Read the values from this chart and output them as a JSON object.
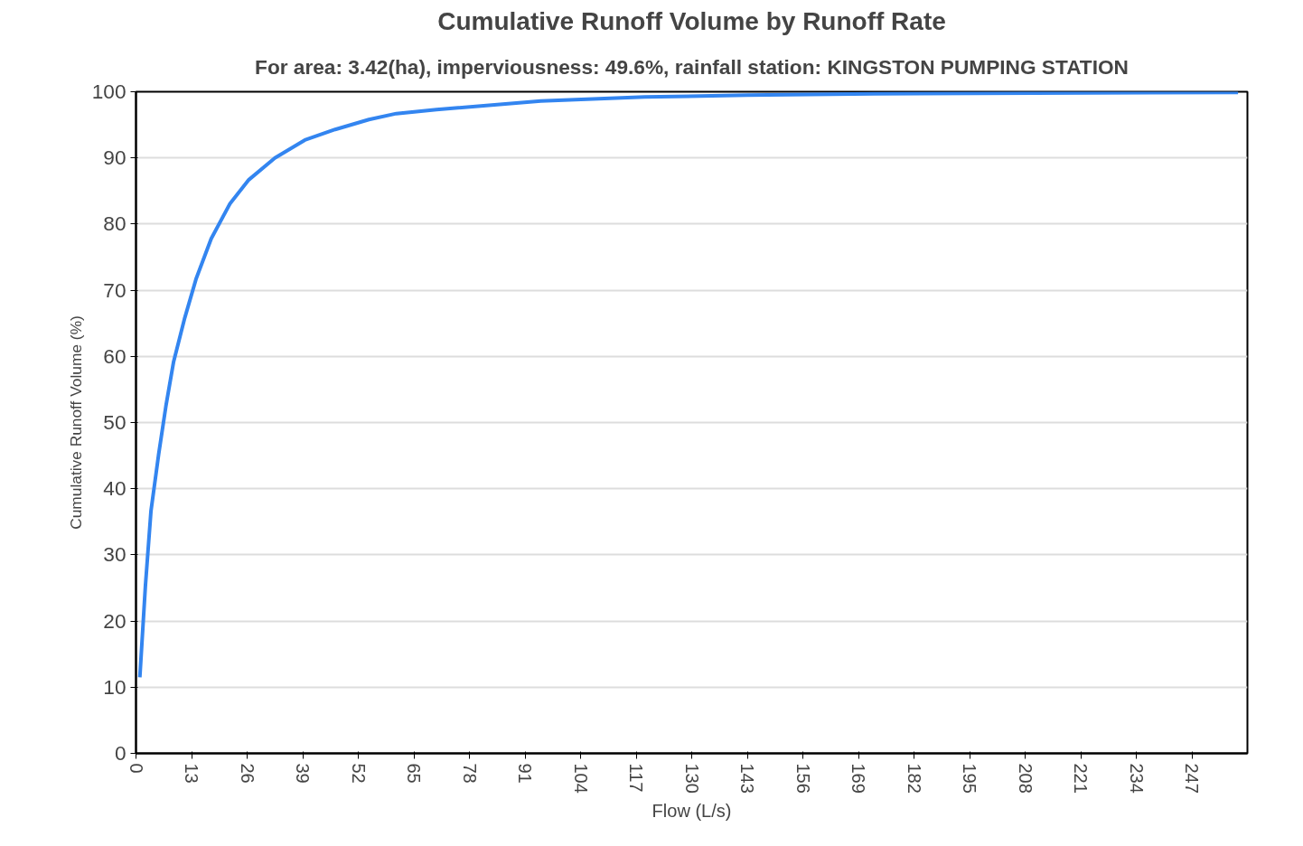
{
  "chart_data": {
    "type": "line",
    "title": "Cumulative Runoff Volume by Runoff Rate",
    "subtitle": "For area: 3.42(ha), imperviousness: 49.6%, rainfall station: KINGSTON PUMPING STATION",
    "xlabel": "Flow (L/s)",
    "ylabel": "Cumulative Runoff Volume (%)",
    "series": [
      {
        "color": "#3385f0",
        "x": [
          0.9,
          2.2,
          3.5,
          5.3,
          7.0,
          8.8,
          11.4,
          14.1,
          17.6,
          22.0,
          26.4,
          32.5,
          39.5,
          46.6,
          54.5,
          60.9,
          70.3,
          94.7,
          119,
          143,
          172.7,
          210,
          257.8
        ],
        "values": [
          11.5,
          25.3,
          36.6,
          45.2,
          52.5,
          59.2,
          65.8,
          71.8,
          77.8,
          83.1,
          86.7,
          90.0,
          92.7,
          94.3,
          95.8,
          96.7,
          97.3,
          98.6,
          99.2,
          99.5,
          99.7,
          99.8,
          99.9
        ]
      }
    ],
    "xlim": [
      0,
      260
    ],
    "ylim": [
      0,
      100
    ],
    "xticks": [
      0,
      13,
      26,
      39,
      52,
      65,
      78,
      91,
      104,
      117,
      130,
      143,
      156,
      169,
      182,
      195,
      208,
      221,
      234,
      247
    ],
    "yticks": [
      0,
      10,
      20,
      30,
      40,
      50,
      60,
      70,
      80,
      90,
      100
    ],
    "grid": "y",
    "marker": "none",
    "line_style": "solid"
  }
}
